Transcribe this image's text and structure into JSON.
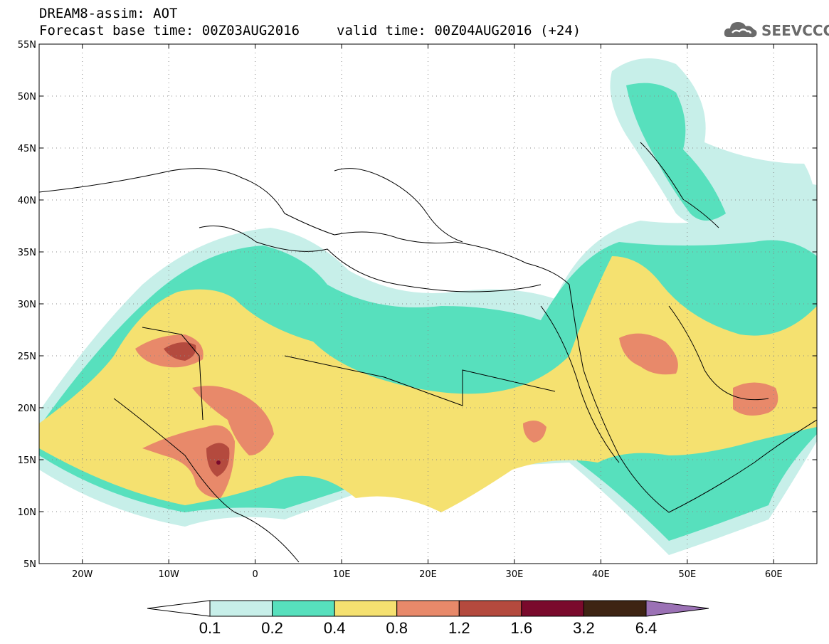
{
  "header": {
    "line1": "DREAM8-assim: AOT",
    "base_time": "Forecast base time: 00Z03AUG2016",
    "valid_time": "valid time: 00Z04AUG2016 (+24)"
  },
  "logo": {
    "text": "SEEVCCC",
    "icon": "cloud-icon"
  },
  "map": {
    "lon_range": [
      -25,
      65
    ],
    "lat_range": [
      5,
      55
    ],
    "lat_labels": [
      "55N",
      "50N",
      "45N",
      "40N",
      "35N",
      "30N",
      "25N",
      "20N",
      "15N",
      "10N",
      "5N"
    ],
    "lon_labels": [
      "20W",
      "10W",
      "0",
      "10E",
      "20E",
      "30E",
      "40E",
      "50E",
      "60E"
    ],
    "grid": true
  },
  "colorbar": {
    "labels": [
      "0.1",
      "0.2",
      "0.4",
      "0.8",
      "1.2",
      "1.6",
      "3.2",
      "6.4"
    ],
    "colors": [
      "#ffffff",
      "#c7efe9",
      "#57e0bd",
      "#f5e170",
      "#e8896a",
      "#b44a3e",
      "#7a0a2c",
      "#3e2413",
      "#9b71b5"
    ]
  }
}
